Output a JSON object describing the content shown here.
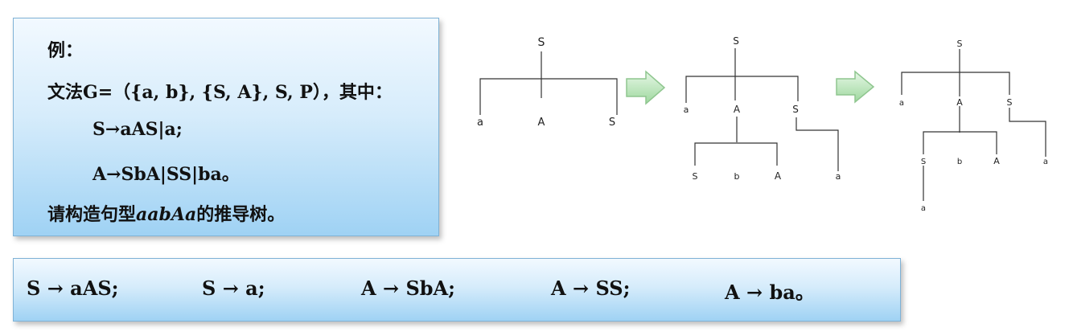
{
  "example": {
    "title": "例：",
    "grammar": "文法G=（{a, b}, {S, A}, S, P），其中：",
    "rule1": "S→aAS|a;",
    "rule2": "A→SbA|SS|ba。",
    "question_pre": "请构造句型",
    "question_word": "aabAa",
    "question_post": "的推导树。"
  },
  "rules": [
    "S →  aAS;",
    "S → a;",
    "A →  SbA;",
    "A → SS;",
    "A  → ba。"
  ],
  "tree1": {
    "root": "S",
    "children": [
      "a",
      "A",
      "S"
    ]
  },
  "tree2": {
    "root": "S",
    "level1": [
      "a",
      "A",
      "S"
    ],
    "level2_under_A": [
      "S",
      "b",
      "A"
    ],
    "level2_under_S": [
      "a"
    ]
  },
  "tree3": {
    "root": "S",
    "level1": [
      "a",
      "A",
      "S"
    ],
    "level2_under_A": [
      "S",
      "b",
      "A"
    ],
    "level2_under_S": [
      "a"
    ],
    "level3_under_S": [
      "a"
    ]
  }
}
